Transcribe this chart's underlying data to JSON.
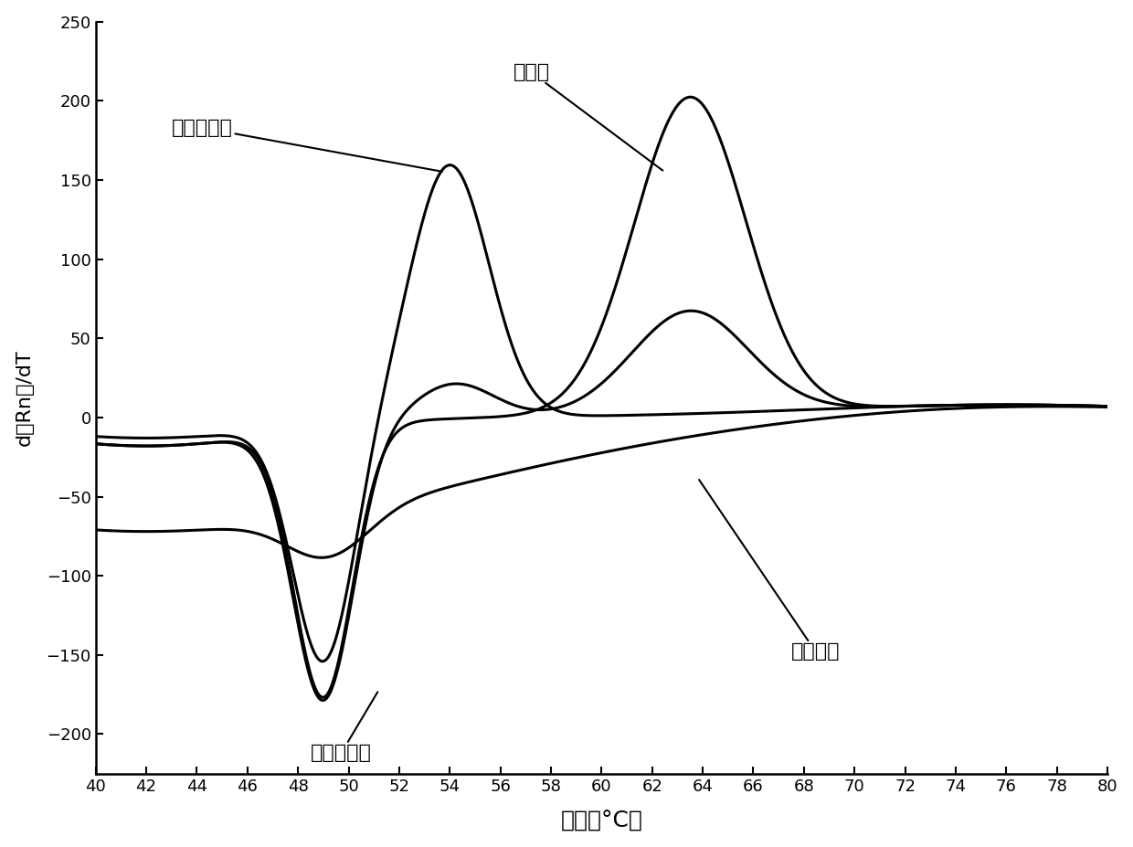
{
  "title": "",
  "xlabel": "温度（°C）",
  "ylabel": "d（Rn）/dT",
  "xlim": [
    40,
    80
  ],
  "ylim": [
    -225,
    250
  ],
  "xticks": [
    40,
    42,
    44,
    46,
    48,
    50,
    52,
    54,
    56,
    58,
    60,
    62,
    64,
    66,
    68,
    70,
    72,
    74,
    76,
    78,
    80
  ],
  "yticks": [
    -200,
    -150,
    -100,
    -50,
    0,
    50,
    100,
    150,
    200,
    250
  ],
  "background_color": "#ffffff",
  "line_color": "#000000",
  "annotations": [
    {
      "text": "纯合突变型",
      "xy_x": 53.8,
      "xy_y": 155,
      "xt_x": 43.0,
      "xt_y": 183,
      "fontsize": 16,
      "ha": "left"
    },
    {
      "text": "野生型",
      "xy_x": 62.5,
      "xy_y": 155,
      "xt_x": 56.5,
      "xt_y": 218,
      "fontsize": 16,
      "ha": "left"
    },
    {
      "text": "杂合突变型",
      "xy_x": 51.2,
      "xy_y": -172,
      "xt_x": 48.5,
      "xt_y": -212,
      "fontsize": 16,
      "ha": "left"
    },
    {
      "text": "阴性对照",
      "xy_x": 63.8,
      "xy_y": -38,
      "xt_x": 67.5,
      "xt_y": -148,
      "fontsize": 16,
      "ha": "left"
    }
  ]
}
